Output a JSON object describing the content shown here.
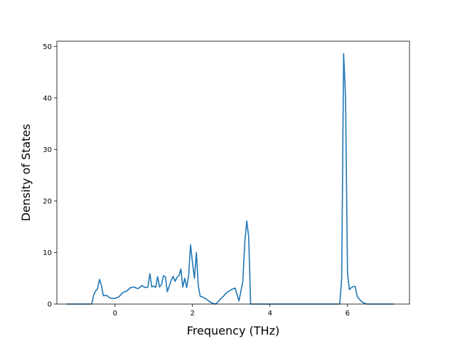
{
  "chart_data": {
    "type": "line",
    "xlabel": "Frequency (THz)",
    "ylabel": "Density of States",
    "xlim": [
      -1.5,
      7.6
    ],
    "ylim": [
      0,
      51
    ],
    "x_ticks": [
      0,
      2,
      4,
      6
    ],
    "y_ticks": [
      0,
      10,
      20,
      30,
      40,
      50
    ],
    "grid": false,
    "series": [
      {
        "color": "#1f77b4",
        "x": [
          -1.25,
          -0.6,
          -0.55,
          -0.5,
          -0.45,
          -0.4,
          -0.35,
          -0.3,
          -0.25,
          -0.2,
          -0.15,
          -0.1,
          -0.05,
          0.0,
          0.1,
          0.2,
          0.25,
          0.3,
          0.4,
          0.5,
          0.55,
          0.6,
          0.7,
          0.75,
          0.8,
          0.85,
          0.9,
          0.95,
          1.0,
          1.05,
          1.1,
          1.15,
          1.2,
          1.25,
          1.3,
          1.35,
          1.4,
          1.45,
          1.5,
          1.55,
          1.6,
          1.65,
          1.7,
          1.75,
          1.8,
          1.85,
          1.9,
          1.95,
          2.0,
          2.05,
          2.1,
          2.15,
          2.2,
          2.25,
          2.3,
          2.35,
          2.4,
          2.5,
          2.6,
          2.7,
          2.75,
          2.8,
          2.85,
          2.9,
          3.0,
          3.1,
          3.2,
          3.3,
          3.35,
          3.4,
          3.45,
          3.5,
          3.55,
          3.6,
          3.62,
          3.65,
          3.7,
          3.8,
          4.0,
          5.0,
          5.75,
          5.8,
          5.85,
          5.9,
          5.95,
          6.0,
          6.05,
          6.1,
          6.15,
          6.2,
          6.25,
          6.3,
          6.35,
          6.4,
          6.5,
          7.0,
          7.2
        ],
        "y": [
          0,
          0,
          1.8,
          2.5,
          3.0,
          4.8,
          3.6,
          1.6,
          1.7,
          1.6,
          1.3,
          1.1,
          1.1,
          1.1,
          1.4,
          2.2,
          2.4,
          2.5,
          3.2,
          3.3,
          3.1,
          3.0,
          3.6,
          3.3,
          3.2,
          3.3,
          5.9,
          3.3,
          3.5,
          3.2,
          5.3,
          3.3,
          3.8,
          5.5,
          5.3,
          2.4,
          3.5,
          4.6,
          5.4,
          4.4,
          5.2,
          5.5,
          6.8,
          3.3,
          5.0,
          3.2,
          5.5,
          11.5,
          8.0,
          5.0,
          10.0,
          3.5,
          1.5,
          1.4,
          1.2,
          1.0,
          0.7,
          0.2,
          0,
          0.8,
          1.2,
          1.5,
          2.0,
          2.3,
          2.8,
          3.1,
          0.6,
          4.5,
          12.0,
          16.1,
          13.0,
          0,
          0,
          0,
          0,
          0,
          0,
          0,
          0,
          0,
          0,
          0,
          5.0,
          48.6,
          40.0,
          6.0,
          2.8,
          3.2,
          3.4,
          3.4,
          1.5,
          1.0,
          0.6,
          0.3,
          0,
          0,
          0
        ]
      }
    ]
  }
}
